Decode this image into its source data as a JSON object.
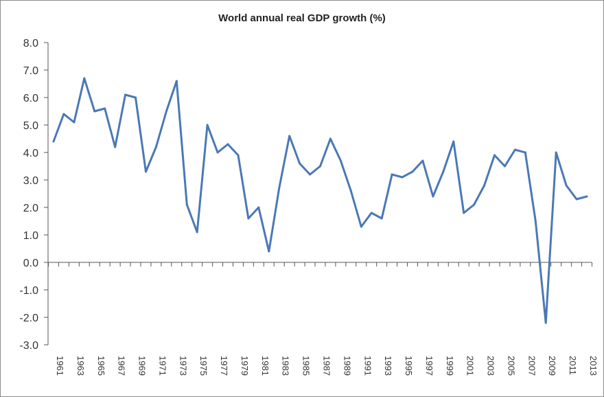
{
  "chart_data": {
    "type": "line",
    "title": "World annual real GDP growth (%)",
    "xlabel": "",
    "ylabel": "",
    "ylim": [
      -3.0,
      8.0
    ],
    "y_ticks": [
      "8.0",
      "7.0",
      "6.0",
      "5.0",
      "4.0",
      "3.0",
      "2.0",
      "1.0",
      "0.0",
      "-1.0",
      "-2.0",
      "-3.0"
    ],
    "x_tick_labels": [
      "1961",
      "1963",
      "1965",
      "1967",
      "1969",
      "1971",
      "1973",
      "1975",
      "1977",
      "1979",
      "1981",
      "1983",
      "1985",
      "1987",
      "1989",
      "1991",
      "1993",
      "1995",
      "1997",
      "1999",
      "2001",
      "2003",
      "2005",
      "2007",
      "2009",
      "2011",
      "2013"
    ],
    "series": [
      {
        "name": "World annual real GDP growth (%)",
        "color": "#4a78b5",
        "x": [
          1961,
          1962,
          1963,
          1964,
          1965,
          1966,
          1967,
          1968,
          1969,
          1970,
          1971,
          1972,
          1973,
          1974,
          1975,
          1976,
          1977,
          1978,
          1979,
          1980,
          1981,
          1982,
          1983,
          1984,
          1985,
          1986,
          1987,
          1988,
          1989,
          1990,
          1991,
          1992,
          1993,
          1994,
          1995,
          1996,
          1997,
          1998,
          1999,
          2000,
          2001,
          2002,
          2003,
          2004,
          2005,
          2006,
          2007,
          2008,
          2009,
          2010,
          2011,
          2012,
          2013
        ],
        "values": [
          4.4,
          5.4,
          5.1,
          6.7,
          5.5,
          5.6,
          4.2,
          6.1,
          6.0,
          3.3,
          4.2,
          5.5,
          6.6,
          2.1,
          1.1,
          5.0,
          4.0,
          4.3,
          3.9,
          1.6,
          2.0,
          0.4,
          2.7,
          4.6,
          3.6,
          3.2,
          3.5,
          4.5,
          3.7,
          2.6,
          1.3,
          1.8,
          1.6,
          3.2,
          3.1,
          3.3,
          3.7,
          2.4,
          3.3,
          4.4,
          1.8,
          2.1,
          2.8,
          3.9,
          3.5,
          4.1,
          4.0,
          1.5,
          -2.2,
          4.0,
          2.8,
          2.3,
          2.4
        ]
      }
    ]
  }
}
